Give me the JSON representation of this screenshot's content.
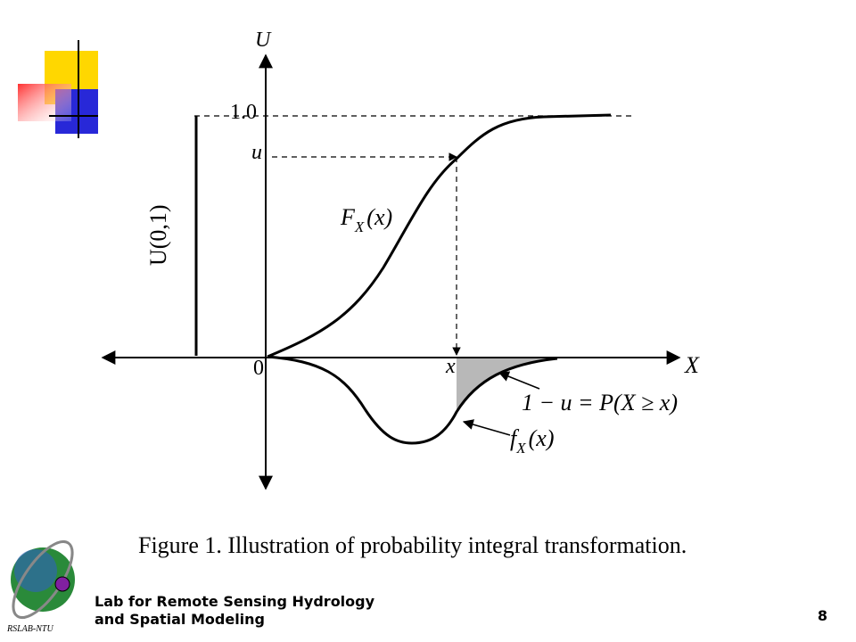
{
  "figure": {
    "axis_u": "U",
    "tick_one": "1.0",
    "tick_u": "u",
    "uniform_label": "U(0,1)",
    "cdf_label": {
      "main": "F",
      "sub": "X",
      "rest": "(x)"
    },
    "origin": "0",
    "tick_x": "x",
    "axis_x": "X",
    "tail_label": "1 − u = P(X ≥ x)",
    "pdf_label": {
      "main": "f",
      "sub": "X",
      "rest": "(x)"
    },
    "caption": "Figure 1. Illustration of probability integral transformation."
  },
  "footer": {
    "logo_text": "RSLAB-NTU",
    "lab_lines": [
      "Lab for Remote Sensing Hydrology",
      "and Spatial Modeling"
    ],
    "page_number": 8
  }
}
